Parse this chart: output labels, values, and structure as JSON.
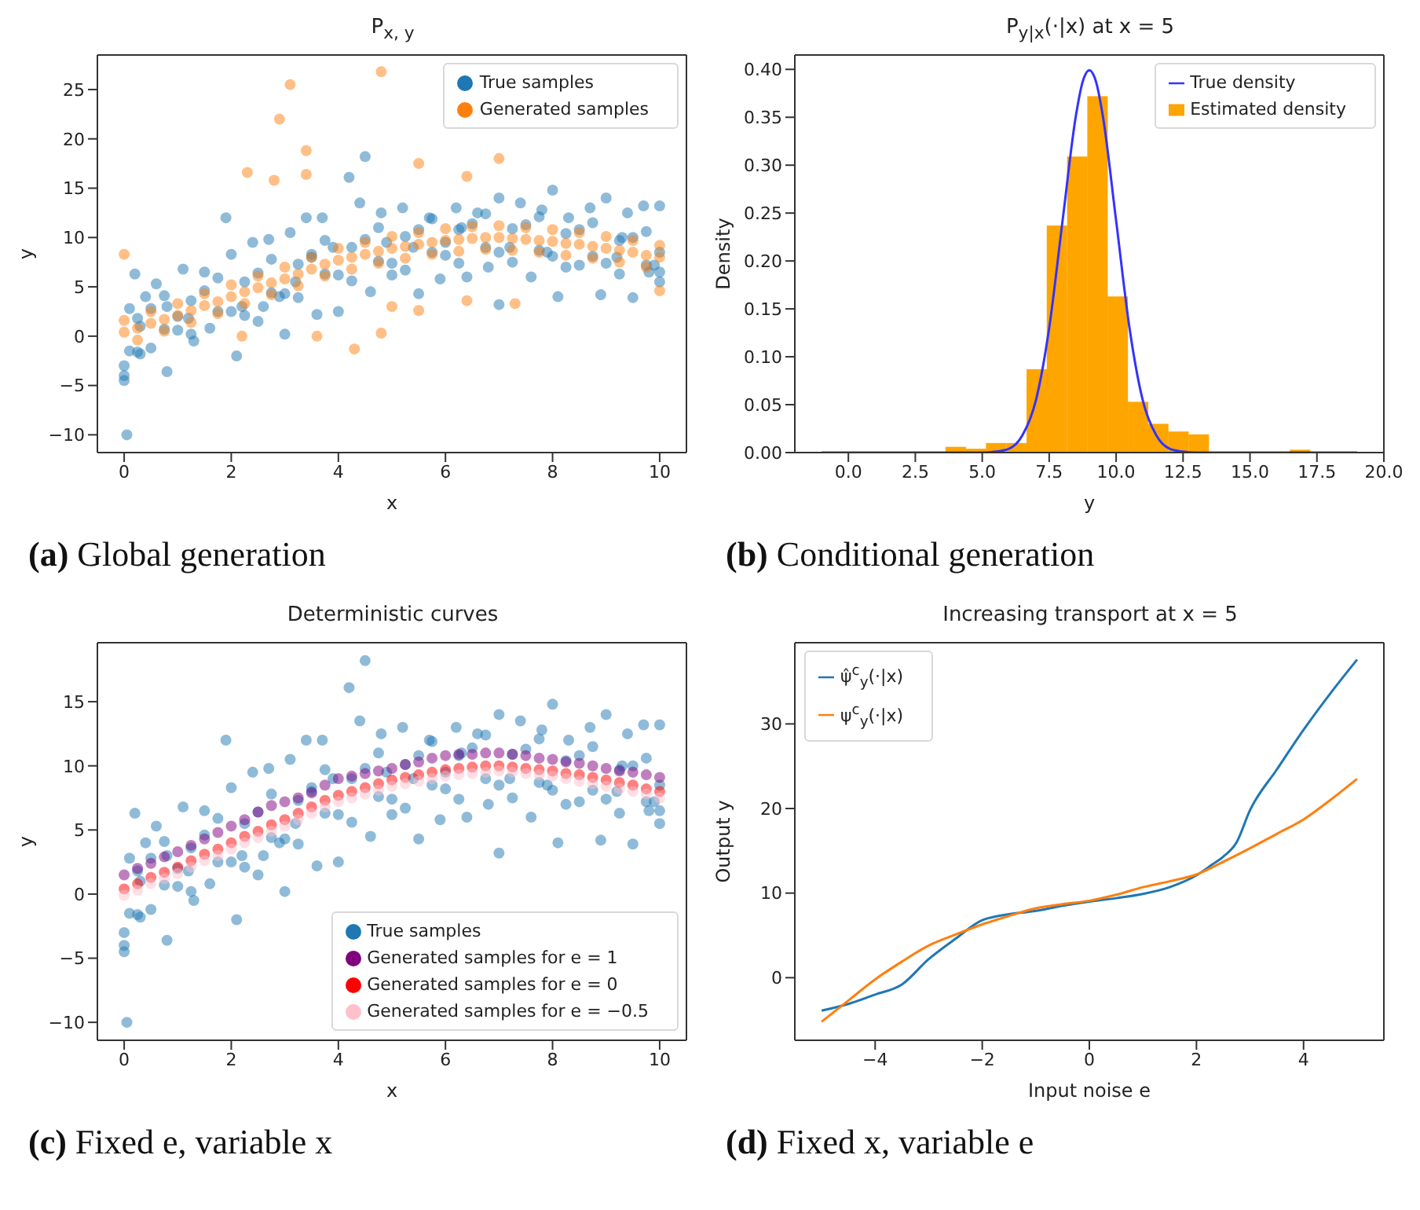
{
  "chart_data": [
    {
      "type": "scatter",
      "title": "P$_{x, y}$",
      "xlabel": "x",
      "ylabel": "y",
      "annotations": [
        "(a) Global generation"
      ],
      "xlim": [
        -0.5,
        10.5
      ],
      "ylim": [
        -11.8,
        28.5
      ],
      "xticks": [
        0,
        2,
        4,
        6,
        8,
        10
      ],
      "yticks": [
        -10,
        -5,
        0,
        5,
        10,
        15,
        20,
        25
      ],
      "legend": "top right",
      "marker": "circle",
      "series": [
        {
          "name": "True samples",
          "color": "#1f77b4",
          "x": [
            0,
            0,
            0,
            0.05,
            0.1,
            0.1,
            0.2,
            0.3,
            0.4,
            0.5,
            0.6,
            0.8,
            0.8,
            1.0,
            1.1,
            1.3,
            1.5,
            1.6,
            1.9,
            2.0,
            2.1,
            2.2,
            2.4,
            2.5,
            2.7,
            2.9,
            3.0,
            3.1,
            3.2,
            3.4,
            3.6,
            3.7,
            3.9,
            4.0,
            4.2,
            4.4,
            4.5,
            4.6,
            4.8,
            5.0,
            5.2,
            5.4,
            5.5,
            5.7,
            5.9,
            6.0,
            6.2,
            6.4,
            6.6,
            6.8,
            7.0,
            7.0,
            7.2,
            7.4,
            7.6,
            7.8,
            8.0,
            8.1,
            8.3,
            8.5,
            8.7,
            8.9,
            9.0,
            9.2,
            9.4,
            9.5,
            9.7,
            9.8,
            10.0,
            10.0,
            10.0,
            0.3,
            1.2,
            2.6,
            3.5,
            4.9,
            6.3,
            7.9,
            9.3,
            9.9,
            0.5,
            1,
            1.5,
            2,
            2.5,
            3,
            3.5,
            4,
            4.5,
            5,
            5.5,
            6,
            6.5,
            7,
            7.5,
            8,
            8.5,
            9,
            9.5,
            10,
            0.25,
            0.75,
            1.25,
            1.75,
            2.25,
            2.75,
            3.25,
            3.75,
            4.25,
            4.75,
            5.25,
            5.75,
            6.25,
            6.75,
            7.25,
            7.75,
            8.25,
            8.75,
            9.25,
            9.75,
            0.25,
            0.75,
            1.25,
            1.75,
            2.25,
            2.75,
            3.25,
            3.75,
            4.25,
            4.75,
            5.25,
            5.75,
            6.25,
            6.75,
            7.25,
            7.75,
            8.25,
            8.75,
            9.25,
            9.75
          ],
          "values": [
            -4.5,
            -4,
            -3,
            -10,
            2.8,
            -1.5,
            6.3,
            1,
            4,
            -1.2,
            5.3,
            -3.6,
            3,
            2,
            6.8,
            -0.5,
            6.5,
            0.8,
            12,
            8.3,
            -2,
            3,
            9.5,
            1.5,
            9.8,
            4,
            0.2,
            10.5,
            5.5,
            12,
            2.2,
            12,
            9,
            2.5,
            16.1,
            13.5,
            18.2,
            4.5,
            12.5,
            6.2,
            13,
            9,
            4.3,
            12,
            5.8,
            9.5,
            13,
            6,
            12.5,
            7,
            3.2,
            14,
            9,
            13.5,
            6,
            12.8,
            14.8,
            4,
            12,
            7.2,
            13,
            4.2,
            14,
            8,
            12.5,
            3.9,
            13.2,
            6.5,
            13.2,
            5.5,
            8.5,
            -1.8,
            1.8,
            3,
            8,
            9.5,
            11,
            8.5,
            10,
            7.2,
            2.8,
            0.6,
            4.6,
            2.5,
            6.4,
            4.3,
            8.3,
            6.2,
            9.8,
            7.4,
            10.8,
            8.2,
            11.4,
            8.5,
            11.3,
            8.1,
            10.8,
            7.4,
            10.0,
            6.5,
            -1.6,
            4.1,
            0.2,
            5.9,
            2.1,
            7.8,
            3.9,
            9.7,
            5.6,
            11.0,
            6.7,
            11.9,
            7.4,
            12.4,
            7.5,
            12.1,
            7.0,
            11.5,
            6.3,
            10.6,
            1.8,
            0.7,
            3.6,
            2.5,
            5.5,
            4.4,
            7.3,
            6.3,
            9.0,
            7.6,
            10.1,
            8.5,
            10.8,
            9.0,
            10.9,
            8.7,
            10.4,
            8.1,
            9.7,
            7.2
          ]
        },
        {
          "name": "Generated samples",
          "color": "#ff7f0e",
          "x": [
            4.8,
            3.1,
            2.9,
            3.4,
            7.0,
            5.5,
            2.3,
            3.4,
            2.8,
            6.4,
            0,
            4.3,
            4.8,
            3.6,
            2.2,
            5.5,
            5.0,
            6.4,
            7.3,
            10.0,
            0,
            0.25,
            0.5,
            0.75,
            1,
            1.25,
            1.5,
            1.75,
            2,
            2.25,
            2.5,
            2.75,
            3,
            3.25,
            3.5,
            3.75,
            4,
            4.25,
            4.5,
            4.75,
            5,
            5.25,
            5.5,
            5.75,
            6,
            6.25,
            6.5,
            6.75,
            7,
            7.25,
            7.5,
            7.75,
            8,
            8.25,
            8.5,
            8.75,
            9,
            9.25,
            9.5,
            9.75,
            10,
            0,
            0.25,
            0.5,
            0.75,
            1,
            1.25,
            1.5,
            1.75,
            2,
            2.25,
            2.5,
            2.75,
            3,
            3.25,
            3.5,
            3.75,
            4,
            4.25,
            4.5,
            4.75,
            5,
            5.25,
            5.5,
            5.75,
            6,
            6.25,
            6.5,
            6.75,
            7,
            7.25,
            7.5,
            7.75,
            8,
            8.25,
            8.5,
            8.75,
            9,
            9.25,
            9.5,
            9.75,
            10
          ],
          "values": [
            26.8,
            25.5,
            22,
            18.8,
            18,
            17.5,
            16.6,
            16.4,
            15.8,
            16.2,
            8.3,
            -1.3,
            0.3,
            0,
            0,
            2.6,
            3,
            3.6,
            3.3,
            4.6,
            1.6,
            -0.4,
            2.5,
            0.5,
            3.3,
            1.4,
            4.3,
            2.3,
            5.2,
            3.3,
            6.1,
            4.2,
            7.0,
            5.1,
            8.0,
            6.1,
            8.9,
            6.8,
            9.5,
            7.4,
            10.1,
            7.9,
            10.5,
            8.3,
            10.9,
            8.6,
            11.1,
            8.8,
            11.2,
            8.7,
            11.0,
            8.5,
            10.8,
            8.2,
            10.5,
            7.9,
            10.1,
            7.5,
            9.7,
            7.0,
            9.2,
            0.4,
            0.8,
            1.3,
            1.7,
            2.1,
            2.6,
            3.1,
            3.5,
            4.0,
            4.5,
            4.9,
            5.4,
            5.8,
            6.3,
            6.8,
            7.3,
            7.7,
            8.0,
            8.3,
            8.6,
            8.9,
            9.1,
            9.3,
            9.5,
            9.7,
            9.8,
            9.9,
            10.0,
            10.0,
            9.9,
            9.8,
            9.7,
            9.6,
            9.4,
            9.3,
            9.1,
            8.9,
            8.7,
            8.5,
            8.2,
            8.0
          ]
        }
      ]
    },
    {
      "type": "histogram",
      "title": "P$_{y|x}$(·|x) at x = 5",
      "xlabel": "y",
      "ylabel": "Density",
      "annotations": [
        "(b) Conditional generation"
      ],
      "xlim": [
        -2,
        20
      ],
      "ylim": [
        0,
        0.415
      ],
      "xticks": [
        {
          "value": 0,
          "label": "0.0"
        },
        2.5,
        {
          "value": 5,
          "label": "5.0"
        },
        7.5,
        {
          "value": 10,
          "label": "10.0"
        },
        12.5,
        {
          "value": 15,
          "label": "15.0"
        },
        17.5,
        {
          "value": 20,
          "label": "20.0"
        }
      ],
      "yticks": [
        {
          "value": 0,
          "label": "0.00"
        },
        0.05,
        {
          "value": 0.1,
          "label": "0.10"
        },
        0.15,
        {
          "value": 0.2,
          "label": "0.20"
        },
        0.25,
        {
          "value": 0.3,
          "label": "0.30"
        },
        0.35,
        {
          "value": 0.4,
          "label": "0.40"
        }
      ],
      "legend": "top right",
      "series": [
        {
          "name": "True density",
          "type": "line",
          "color": "#3333ff",
          "x": [
            -1,
            0,
            1,
            2,
            3,
            4,
            5,
            5.5,
            6,
            6.5,
            7,
            7.5,
            8,
            8.5,
            8.75,
            9,
            9.25,
            9.5,
            10,
            10.5,
            11,
            11.5,
            12,
            12.5,
            13,
            14,
            15,
            16,
            17,
            18,
            19
          ],
          "values": [
            0,
            0,
            0,
            0,
            0,
            0,
            0,
            0.001,
            0.004,
            0.018,
            0.054,
            0.13,
            0.242,
            0.352,
            0.387,
            0.399,
            0.387,
            0.352,
            0.242,
            0.13,
            0.054,
            0.018,
            0.004,
            0.001,
            0,
            0,
            0,
            0,
            0,
            0,
            0
          ]
        },
        {
          "name": "Estimated density",
          "color": "#ffa500",
          "bins": [
            3.63,
            4.39,
            5.14,
            5.9,
            6.66,
            7.41,
            8.17,
            8.93,
            9.68,
            10.44,
            11.2,
            11.95,
            12.71,
            13.46,
            14.22,
            14.98,
            15.73,
            16.49,
            17.25
          ],
          "values": [
            0.006,
            0.004,
            0.01,
            0.01,
            0.087,
            0.237,
            0.309,
            0.372,
            0.163,
            0.053,
            0.03,
            0.022,
            0.019,
            0,
            0,
            0,
            0,
            0.003
          ]
        }
      ]
    },
    {
      "type": "scatter",
      "title": "Deterministic curves",
      "xlabel": "x",
      "ylabel": "y",
      "annotations": [
        "(c) Fixed e, variable x"
      ],
      "xlim": [
        -0.5,
        10.5
      ],
      "ylim": [
        -11.4,
        19.6
      ],
      "xticks": [
        0,
        2,
        4,
        6,
        8,
        10
      ],
      "yticks": [
        -10,
        -5,
        0,
        5,
        10,
        15
      ],
      "legend": "bottom right",
      "marker": "circle",
      "series": [
        {
          "name": "True samples",
          "color": "#1f77b4",
          "x": [
            0,
            0,
            0,
            0.05,
            0.1,
            0.1,
            0.2,
            0.3,
            0.4,
            0.5,
            0.6,
            0.8,
            0.8,
            1.0,
            1.1,
            1.3,
            1.5,
            1.6,
            1.9,
            2.0,
            2.1,
            2.2,
            2.4,
            2.5,
            2.7,
            2.9,
            3.0,
            3.1,
            3.2,
            3.4,
            3.6,
            3.7,
            3.9,
            4.0,
            4.2,
            4.4,
            4.5,
            4.6,
            4.8,
            5.0,
            5.2,
            5.4,
            5.5,
            5.7,
            5.9,
            6.0,
            6.2,
            6.4,
            6.6,
            6.8,
            7.0,
            7.0,
            7.2,
            7.4,
            7.6,
            7.8,
            8.0,
            8.1,
            8.3,
            8.5,
            8.7,
            8.9,
            9.0,
            9.2,
            9.4,
            9.5,
            9.7,
            9.8,
            10.0,
            10.0,
            10.0,
            0.3,
            1.2,
            2.6,
            3.5,
            4.9,
            6.3,
            7.9,
            9.3,
            9.9,
            0.5,
            1,
            1.5,
            2,
            2.5,
            3,
            3.5,
            4,
            4.5,
            5,
            5.5,
            6,
            6.5,
            7,
            7.5,
            8,
            8.5,
            9,
            9.5,
            10,
            0.25,
            0.75,
            1.25,
            1.75,
            2.25,
            2.75,
            3.25,
            3.75,
            4.25,
            4.75,
            5.25,
            5.75,
            6.25,
            6.75,
            7.25,
            7.75,
            8.25,
            8.75,
            9.25,
            9.75,
            0.25,
            0.75,
            1.25,
            1.75,
            2.25,
            2.75,
            3.25,
            3.75,
            4.25,
            4.75,
            5.25,
            5.75,
            6.25,
            6.75,
            7.25,
            7.75,
            8.25,
            8.75,
            9.25,
            9.75
          ],
          "values": [
            -4.5,
            -4,
            -3,
            -10,
            2.8,
            -1.5,
            6.3,
            1,
            4,
            -1.2,
            5.3,
            -3.6,
            3,
            2,
            6.8,
            -0.5,
            6.5,
            0.8,
            12,
            8.3,
            -2,
            3,
            9.5,
            1.5,
            9.8,
            4,
            0.2,
            10.5,
            5.5,
            12,
            2.2,
            12,
            9,
            2.5,
            16.1,
            13.5,
            18.2,
            4.5,
            12.5,
            6.2,
            13,
            9,
            4.3,
            12,
            5.8,
            9.5,
            13,
            6,
            12.5,
            7,
            3.2,
            14,
            9,
            13.5,
            6,
            12.8,
            14.8,
            4,
            12,
            7.2,
            13,
            4.2,
            14,
            8,
            12.5,
            3.9,
            13.2,
            6.5,
            13.2,
            5.5,
            8.5,
            -1.8,
            1.8,
            3,
            8,
            9.5,
            11,
            8.5,
            10,
            7.2,
            2.8,
            0.6,
            4.6,
            2.5,
            6.4,
            4.3,
            8.3,
            6.2,
            9.8,
            7.4,
            10.8,
            8.2,
            11.4,
            8.5,
            11.3,
            8.1,
            10.8,
            7.4,
            10.0,
            6.5,
            -1.6,
            4.1,
            0.2,
            5.9,
            2.1,
            7.8,
            3.9,
            9.7,
            5.6,
            11.0,
            6.7,
            11.9,
            7.4,
            12.4,
            7.5,
            12.1,
            7.0,
            11.5,
            6.3,
            10.6,
            1.8,
            0.7,
            3.6,
            2.5,
            5.5,
            4.4,
            7.3,
            6.3,
            9.0,
            7.6,
            10.1,
            8.5,
            10.8,
            9.0,
            10.9,
            8.7,
            10.4,
            8.1,
            9.7,
            7.2
          ]
        },
        {
          "name": "Generated samples for e = 1",
          "color": "#800080",
          "x": [
            0,
            0.25,
            0.5,
            0.75,
            1,
            1.25,
            1.5,
            1.75,
            2,
            2.25,
            2.5,
            2.75,
            3,
            3.25,
            3.5,
            3.75,
            4,
            4.25,
            4.5,
            4.75,
            5,
            5.25,
            5.5,
            5.75,
            6,
            6.25,
            6.5,
            6.75,
            7,
            7.25,
            7.5,
            7.75,
            8,
            8.25,
            8.5,
            8.75,
            9,
            9.25,
            9.5,
            9.75,
            10
          ],
          "values": [
            1.5,
            2.0,
            2.4,
            2.9,
            3.3,
            3.8,
            4.3,
            4.8,
            5.3,
            5.8,
            6.4,
            6.9,
            7.2,
            7.5,
            7.9,
            8.5,
            9.0,
            9.2,
            9.4,
            9.6,
            9.8,
            10.1,
            10.3,
            10.6,
            10.8,
            10.9,
            10.9,
            11.0,
            11.0,
            10.9,
            10.8,
            10.6,
            10.5,
            10.3,
            10.2,
            10.0,
            9.8,
            9.6,
            9.5,
            9.3,
            9.1
          ]
        },
        {
          "name": "Generated samples for e = 0",
          "color": "#ff0000",
          "x": [
            0,
            0.25,
            0.5,
            0.75,
            1,
            1.25,
            1.5,
            1.75,
            2,
            2.25,
            2.5,
            2.75,
            3,
            3.25,
            3.5,
            3.75,
            4,
            4.25,
            4.5,
            4.75,
            5,
            5.25,
            5.5,
            5.75,
            6,
            6.25,
            6.5,
            6.75,
            7,
            7.25,
            7.5,
            7.75,
            8,
            8.25,
            8.5,
            8.75,
            9,
            9.25,
            9.5,
            9.75,
            10
          ],
          "values": [
            0.4,
            0.8,
            1.3,
            1.7,
            2.1,
            2.6,
            3.1,
            3.5,
            4.0,
            4.5,
            4.9,
            5.4,
            5.8,
            6.3,
            6.8,
            7.3,
            7.7,
            8.0,
            8.3,
            8.6,
            8.9,
            9.1,
            9.3,
            9.5,
            9.7,
            9.8,
            9.9,
            10.0,
            10.0,
            9.9,
            9.8,
            9.7,
            9.6,
            9.4,
            9.3,
            9.1,
            8.9,
            8.7,
            8.5,
            8.2,
            8.0
          ]
        },
        {
          "name": "Generated samples for e = −0.5",
          "color": "#ffc0cb",
          "x": [
            0,
            0.25,
            0.5,
            0.75,
            1,
            1.25,
            1.5,
            1.75,
            2,
            2.25,
            2.5,
            2.75,
            3,
            3.25,
            3.5,
            3.75,
            4,
            4.25,
            4.5,
            4.75,
            5,
            5.25,
            5.5,
            5.75,
            6,
            6.25,
            6.5,
            6.75,
            7,
            7.25,
            7.5,
            7.75,
            8,
            8.25,
            8.5,
            8.75,
            9,
            9.25,
            9.5,
            9.75,
            10
          ],
          "values": [
            -0.1,
            0.3,
            0.8,
            1.2,
            1.6,
            2.1,
            2.6,
            3.0,
            3.5,
            4.0,
            4.4,
            4.9,
            5.3,
            5.8,
            6.3,
            6.8,
            7.2,
            7.5,
            7.8,
            8.1,
            8.4,
            8.6,
            8.8,
            9.0,
            9.2,
            9.3,
            9.4,
            9.5,
            9.6,
            9.5,
            9.4,
            9.3,
            9.2,
            9.0,
            8.8,
            8.6,
            8.4,
            8.2,
            8.0,
            7.8,
            7.5
          ]
        }
      ]
    },
    {
      "type": "line",
      "title": "Increasing transport at x = 5",
      "xlabel": "Input noise e",
      "ylabel": "Output y",
      "annotations": [
        "(d) Fixed x, variable e"
      ],
      "xlim": [
        -5.5,
        5.5
      ],
      "ylim": [
        -7.4,
        39.6
      ],
      "xticks": [
        -4,
        -2,
        0,
        2,
        4
      ],
      "yticks": [
        0,
        10,
        20,
        30
      ],
      "legend": "top left",
      "series": [
        {
          "name": "ψ̂$^{c}$$_{y}$(·|x)",
          "color": "#1f77b4",
          "x": [
            -5,
            -4.5,
            -4,
            -3.5,
            -3,
            -2.5,
            -2,
            -1.7,
            -1.5,
            -1,
            -0.5,
            0,
            0.5,
            1,
            1.5,
            2,
            2.3,
            2.5,
            2.75,
            3,
            3.5,
            4,
            4.5,
            5
          ],
          "values": [
            -3.9,
            -3.1,
            -2.0,
            -0.8,
            2.2,
            4.6,
            6.8,
            7.3,
            7.5,
            7.9,
            8.5,
            9.0,
            9.4,
            9.9,
            10.7,
            12.1,
            13.4,
            14.3,
            16.0,
            19.8,
            24.6,
            29.3,
            33.6,
            37.6
          ]
        },
        {
          "name": "ψ$^{c}$$_{y}$(·|x)",
          "color": "#ff7f0e",
          "x": [
            -5,
            -4.5,
            -4,
            -3.5,
            -3,
            -2.5,
            -2,
            -1.5,
            -1,
            -0.5,
            0,
            0.5,
            1,
            1.5,
            2,
            2.5,
            3,
            3.5,
            4,
            4.5,
            5
          ],
          "values": [
            -5.2,
            -2.7,
            -0.2,
            1.9,
            3.8,
            5.1,
            6.3,
            7.3,
            8.2,
            8.7,
            9.1,
            9.8,
            10.7,
            11.4,
            12.2,
            13.7,
            15.3,
            17.0,
            18.7,
            21.0,
            23.5
          ]
        }
      ]
    }
  ]
}
